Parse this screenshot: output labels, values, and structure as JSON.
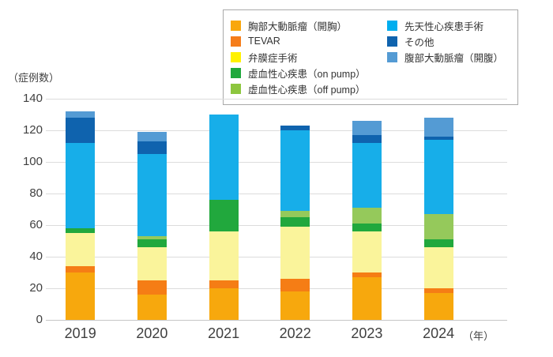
{
  "y_axis": {
    "title": "（症例数）",
    "ticks": [
      0,
      20,
      40,
      60,
      80,
      100,
      120,
      140
    ]
  },
  "x_axis": {
    "unit_label": "（年）"
  },
  "chart_data": {
    "type": "bar",
    "stacked": true,
    "title": "",
    "categories": [
      "2019",
      "2020",
      "2021",
      "2022",
      "2023",
      "2024"
    ],
    "ylim": [
      0,
      140
    ],
    "grid": true,
    "legend_position": "top-right",
    "series": [
      {
        "name": "胸部大動脈瘤（開胸）",
        "color": "#F7A80D",
        "legend_color": "#F9A70D",
        "values": [
          30,
          16,
          20,
          18,
          27,
          17
        ]
      },
      {
        "name": "TEVAR",
        "color": "#F57D15",
        "legend_color": "#F57D1A",
        "values": [
          4,
          9,
          5,
          8,
          3,
          3
        ]
      },
      {
        "name": "弁膜症手術",
        "color": "#FAF49B",
        "legend_color": "#FFF100",
        "values": [
          21,
          21,
          31,
          33,
          26,
          26
        ]
      },
      {
        "name": "虚血性心疾患（on pump）",
        "color": "#21A83D",
        "legend_color": "#1FA83C",
        "values": [
          3,
          5,
          20,
          6,
          5,
          5
        ]
      },
      {
        "name": "虚血性心疾患（off pump）",
        "color": "#95C95B",
        "legend_color": "#8DC63F",
        "values": [
          0,
          2,
          0,
          4,
          10,
          16
        ]
      },
      {
        "name": "先天性心疾患手術",
        "color": "#17AEE9",
        "legend_color": "#00AEEF",
        "values": [
          54,
          52,
          54,
          51,
          41,
          47
        ]
      },
      {
        "name": "その他",
        "color": "#0F63AE",
        "legend_color": "#0F63AE",
        "values": [
          16,
          8,
          0,
          3,
          5,
          2
        ]
      },
      {
        "name": "腹部大動脈瘤（開腹）",
        "color": "#549BD4",
        "legend_color": "#549BD4",
        "values": [
          4,
          6,
          0,
          0,
          9,
          12
        ]
      }
    ]
  },
  "legend": {
    "columns": [
      [
        0,
        1,
        2,
        3,
        4
      ],
      [
        5,
        6,
        7
      ]
    ]
  }
}
